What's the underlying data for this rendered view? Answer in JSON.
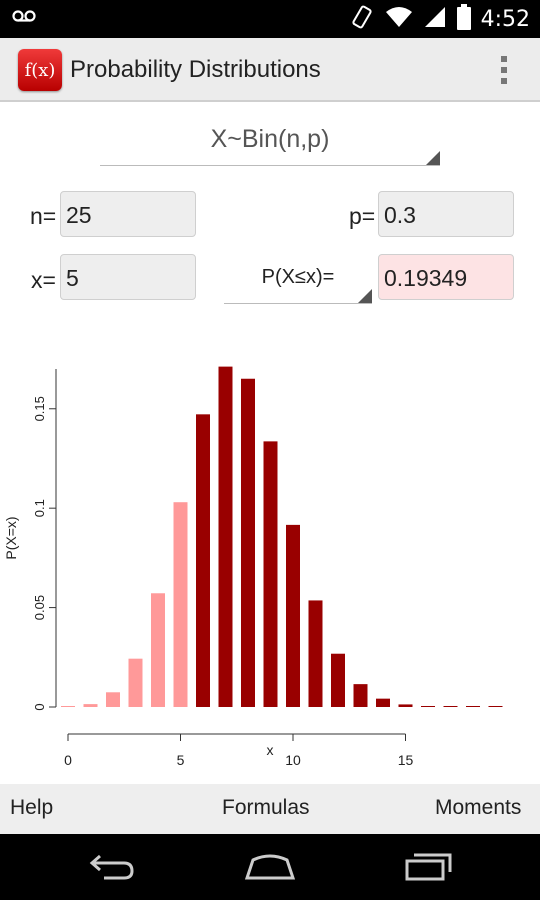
{
  "status_bar": {
    "time": "4:52",
    "icons": [
      "voicemail-icon",
      "vibrate-icon",
      "wifi-icon",
      "signal-icon",
      "battery-icon"
    ]
  },
  "action_bar": {
    "app_icon_label": "f(x)",
    "title": "Probability Distributions",
    "overflow_icon": "overflow-menu-icon"
  },
  "distribution": {
    "selected": "X~Bin(n,p)"
  },
  "params": {
    "n_label": "n=",
    "n_value": "25",
    "p_label": "p=",
    "p_value": "0.3",
    "x_label": "x=",
    "x_value": "5",
    "operator": "P(X≤x)=",
    "result": "0.19349"
  },
  "chart_data": {
    "type": "bar",
    "xlabel": "x",
    "ylabel": "P(X=x)",
    "xlim": [
      0,
      19
    ],
    "ylim": [
      0,
      0.17
    ],
    "x_ticks": [
      "0",
      "5",
      "10",
      "15"
    ],
    "y_ticks": [
      "0",
      "0.05",
      "0.1",
      "0.15"
    ],
    "x": [
      0,
      1,
      2,
      3,
      4,
      5,
      6,
      7,
      8,
      9,
      10,
      11,
      12,
      13,
      14,
      15,
      16,
      17,
      18,
      19
    ],
    "values": [
      0.00013,
      0.00145,
      0.0074,
      0.0243,
      0.0572,
      0.103,
      0.1472,
      0.1712,
      0.1651,
      0.1336,
      0.0916,
      0.0536,
      0.0268,
      0.0115,
      0.0042,
      0.0013,
      0.00035,
      8e-05,
      1.6e-05,
      2.6e-06
    ],
    "highlight_through_x": 5,
    "colors": {
      "highlight": "#ff9999",
      "rest": "#990000"
    }
  },
  "bottom_tabs": {
    "help": "Help",
    "formulas": "Formulas",
    "moments": "Moments"
  },
  "nav_bar": {
    "icons": [
      "back-icon",
      "home-icon",
      "recents-icon"
    ]
  }
}
